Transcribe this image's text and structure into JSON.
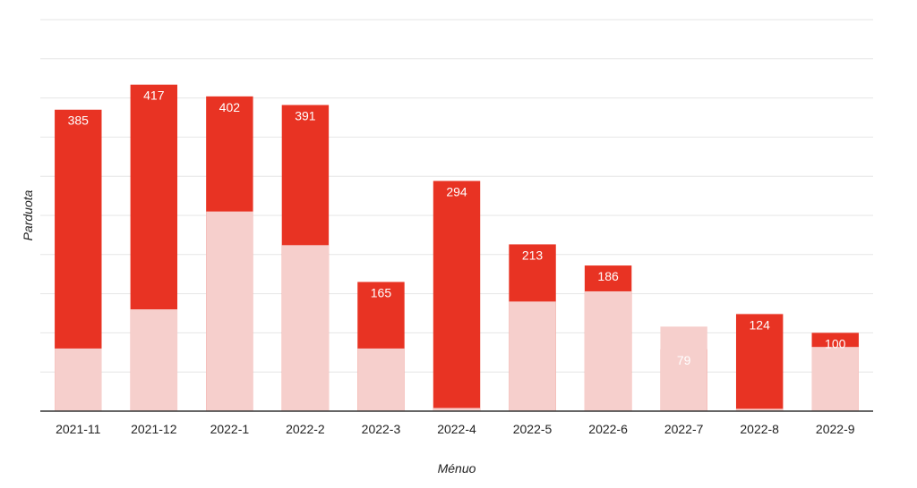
{
  "chart_data": {
    "type": "bar",
    "stacked": true,
    "xlabel": "Ménuo",
    "ylabel": "Parduota",
    "categories": [
      "2021-11",
      "2021-12",
      "2022-1",
      "2022-2",
      "2022-3",
      "2022-4",
      "2022-5",
      "2022-6",
      "2022-7",
      "2022-8",
      "2022-9"
    ],
    "series": [
      {
        "values": [
          80,
          130,
          255,
          212,
          80,
          4,
          140,
          153,
          108,
          3,
          82
        ],
        "color": "#f6cfcc"
      },
      {
        "values": [
          305,
          287,
          147,
          179,
          85,
          290,
          73,
          33,
          -29,
          121,
          18
        ],
        "color": "#e83323"
      }
    ],
    "totals": [
      385,
      417,
      402,
      391,
      165,
      294,
      213,
      186,
      79,
      124,
      100
    ],
    "ylim": [
      0,
      1000
    ],
    "grid": true,
    "legend": "none"
  }
}
